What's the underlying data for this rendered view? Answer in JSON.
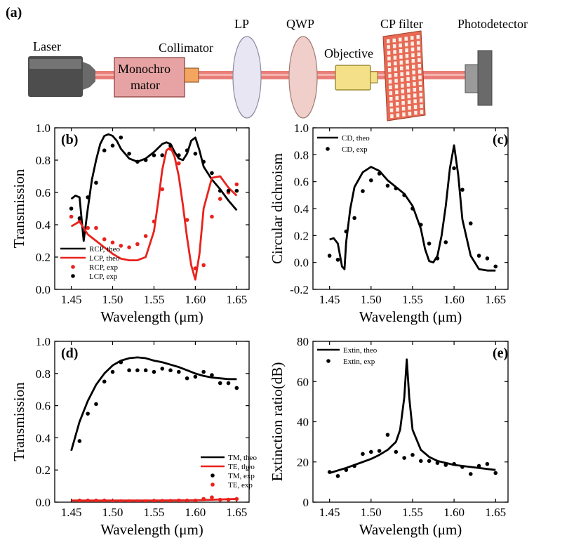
{
  "setup": {
    "panel_label": "(a)",
    "components": {
      "laser": "Laser",
      "monochromator_line1": "Monochro",
      "monochromator_line2": "mator",
      "collimator": "Collimator",
      "lp": "LP",
      "qwp": "QWP",
      "objective": "Objective",
      "cp_filter": "CP filter",
      "photodetector": "Photodetector"
    },
    "colors": {
      "beam": "#e8706a",
      "laser_body": "#5a5a5a",
      "monochromator": "#e7a3a3",
      "collimator": "#f4a660",
      "lp_disc": "#e8e6f2",
      "qwp_disc": "#f0cfca",
      "objective": "#f5e08a",
      "filter": "#e86a55",
      "detector": "#7a7a7a"
    }
  },
  "chart_data": [
    {
      "id": "b",
      "panel_label": "(b)",
      "type": "line",
      "ylabel": "Transmission",
      "xlabel": "Wavelength (μm)",
      "xlim": [
        1.43,
        1.665
      ],
      "ylim": [
        0.0,
        1.0
      ],
      "xticks": [
        1.45,
        1.5,
        1.55,
        1.6,
        1.65
      ],
      "yticks": [
        0.0,
        0.2,
        0.4,
        0.6,
        0.8,
        1.0
      ],
      "legend_position": "bottom-left",
      "series": [
        {
          "name": "RCP, theo",
          "kind": "line",
          "color": "#000000",
          "x": [
            1.45,
            1.455,
            1.46,
            1.465,
            1.47,
            1.475,
            1.48,
            1.485,
            1.49,
            1.495,
            1.5,
            1.505,
            1.51,
            1.52,
            1.53,
            1.54,
            1.55,
            1.56,
            1.565,
            1.57,
            1.575,
            1.58,
            1.585,
            1.59,
            1.595,
            1.6,
            1.605,
            1.61,
            1.62,
            1.63,
            1.64,
            1.65
          ],
          "y": [
            0.56,
            0.58,
            0.57,
            0.3,
            0.5,
            0.68,
            0.8,
            0.9,
            0.95,
            0.96,
            0.95,
            0.92,
            0.87,
            0.81,
            0.79,
            0.81,
            0.85,
            0.9,
            0.91,
            0.9,
            0.85,
            0.81,
            0.8,
            0.84,
            0.92,
            0.94,
            0.86,
            0.76,
            0.68,
            0.62,
            0.55,
            0.49
          ]
        },
        {
          "name": "LCP, theo",
          "kind": "line",
          "color": "#e8221c",
          "x": [
            1.45,
            1.46,
            1.465,
            1.47,
            1.48,
            1.49,
            1.5,
            1.51,
            1.52,
            1.53,
            1.54,
            1.55,
            1.555,
            1.56,
            1.565,
            1.57,
            1.575,
            1.58,
            1.585,
            1.59,
            1.595,
            1.6,
            1.605,
            1.61,
            1.62,
            1.63,
            1.64,
            1.65
          ],
          "y": [
            0.39,
            0.42,
            0.38,
            0.34,
            0.3,
            0.26,
            0.22,
            0.19,
            0.18,
            0.18,
            0.2,
            0.36,
            0.54,
            0.74,
            0.86,
            0.88,
            0.82,
            0.7,
            0.52,
            0.32,
            0.15,
            0.06,
            0.22,
            0.5,
            0.69,
            0.7,
            0.63,
            0.58
          ]
        },
        {
          "name": "RCP, exp",
          "kind": "scatter",
          "color": "#e8221c",
          "x": [
            1.45,
            1.46,
            1.47,
            1.48,
            1.49,
            1.5,
            1.51,
            1.52,
            1.53,
            1.54,
            1.55,
            1.56,
            1.57,
            1.58,
            1.59,
            1.6,
            1.61,
            1.62,
            1.63,
            1.64,
            1.65
          ],
          "y": [
            0.45,
            0.42,
            0.38,
            0.38,
            0.31,
            0.29,
            0.27,
            0.26,
            0.28,
            0.33,
            0.42,
            0.62,
            0.87,
            0.78,
            0.43,
            0.13,
            0.15,
            0.45,
            0.56,
            0.6,
            0.65
          ]
        },
        {
          "name": "LCP, exp",
          "kind": "scatter",
          "color": "#000000",
          "x": [
            1.45,
            1.46,
            1.47,
            1.48,
            1.49,
            1.5,
            1.51,
            1.52,
            1.53,
            1.54,
            1.55,
            1.56,
            1.57,
            1.58,
            1.59,
            1.6,
            1.61,
            1.62,
            1.63,
            1.64,
            1.65
          ],
          "y": [
            0.5,
            0.44,
            0.57,
            0.66,
            0.86,
            0.89,
            0.94,
            0.84,
            0.79,
            0.8,
            0.83,
            0.83,
            0.89,
            0.83,
            0.86,
            0.84,
            0.79,
            0.72,
            0.61,
            0.61,
            0.61
          ]
        }
      ]
    },
    {
      "id": "c",
      "panel_label": "(c)",
      "type": "line",
      "ylabel": "Circular dichroism",
      "xlabel": "Wavelength (μm)",
      "xlim": [
        1.43,
        1.665
      ],
      "ylim": [
        -0.2,
        1.0
      ],
      "xticks": [
        1.45,
        1.5,
        1.55,
        1.6,
        1.65
      ],
      "yticks": [
        -0.2,
        0.0,
        0.2,
        0.4,
        0.6,
        0.8,
        1.0
      ],
      "legend_position": "top-left",
      "series": [
        {
          "name": "CD, theo",
          "kind": "line",
          "color": "#000000",
          "x": [
            1.45,
            1.455,
            1.46,
            1.465,
            1.468,
            1.47,
            1.475,
            1.48,
            1.49,
            1.5,
            1.51,
            1.52,
            1.53,
            1.54,
            1.55,
            1.56,
            1.565,
            1.57,
            1.575,
            1.58,
            1.585,
            1.59,
            1.595,
            1.6,
            1.605,
            1.61,
            1.62,
            1.63,
            1.64,
            1.65
          ],
          "y": [
            0.17,
            0.18,
            0.14,
            -0.03,
            -0.05,
            0.15,
            0.4,
            0.56,
            0.67,
            0.71,
            0.68,
            0.61,
            0.56,
            0.51,
            0.42,
            0.25,
            0.1,
            0.01,
            0.0,
            0.05,
            0.2,
            0.42,
            0.7,
            0.87,
            0.65,
            0.32,
            0.05,
            -0.05,
            -0.06,
            -0.06
          ]
        },
        {
          "name": "CD, exp",
          "kind": "scatter",
          "color": "#000000",
          "x": [
            1.45,
            1.46,
            1.47,
            1.48,
            1.49,
            1.5,
            1.51,
            1.52,
            1.53,
            1.54,
            1.55,
            1.56,
            1.57,
            1.58,
            1.59,
            1.6,
            1.61,
            1.62,
            1.63,
            1.64,
            1.65
          ],
          "y": [
            0.05,
            0.02,
            0.23,
            0.33,
            0.53,
            0.61,
            0.66,
            0.57,
            0.55,
            0.5,
            0.4,
            0.28,
            0.14,
            0.03,
            0.15,
            0.7,
            0.54,
            0.29,
            0.05,
            0.03,
            -0.03
          ]
        }
      ]
    },
    {
      "id": "d",
      "panel_label": "(d)",
      "type": "line",
      "ylabel": "Transmission",
      "xlabel": "Wavelength (μm)",
      "xlim": [
        1.43,
        1.665
      ],
      "ylim": [
        0.0,
        1.0
      ],
      "xticks": [
        1.45,
        1.5,
        1.55,
        1.6,
        1.65
      ],
      "yticks": [
        0.0,
        0.2,
        0.4,
        0.6,
        0.8,
        1.0
      ],
      "legend_position": "bottom-right",
      "series": [
        {
          "name": "TM, theo",
          "kind": "line",
          "color": "#000000",
          "x": [
            1.45,
            1.46,
            1.47,
            1.48,
            1.49,
            1.5,
            1.51,
            1.52,
            1.53,
            1.54,
            1.55,
            1.56,
            1.57,
            1.58,
            1.59,
            1.6,
            1.61,
            1.62,
            1.63,
            1.64,
            1.65
          ],
          "y": [
            0.32,
            0.5,
            0.63,
            0.73,
            0.8,
            0.85,
            0.88,
            0.895,
            0.9,
            0.895,
            0.88,
            0.87,
            0.855,
            0.84,
            0.82,
            0.8,
            0.785,
            0.775,
            0.77,
            0.765,
            0.765
          ]
        },
        {
          "name": "TE, theo",
          "kind": "line",
          "color": "#e8221c",
          "x": [
            1.45,
            1.5,
            1.55,
            1.6,
            1.65
          ],
          "y": [
            0.01,
            0.01,
            0.01,
            0.012,
            0.02
          ]
        },
        {
          "name": "TM, exp",
          "kind": "scatter",
          "color": "#000000",
          "x": [
            1.46,
            1.47,
            1.48,
            1.49,
            1.5,
            1.51,
            1.52,
            1.53,
            1.54,
            1.55,
            1.56,
            1.57,
            1.58,
            1.59,
            1.6,
            1.61,
            1.62,
            1.63,
            1.64,
            1.65
          ],
          "y": [
            0.38,
            0.55,
            0.61,
            0.75,
            0.81,
            0.87,
            0.82,
            0.82,
            0.82,
            0.81,
            0.83,
            0.82,
            0.81,
            0.77,
            0.78,
            0.81,
            0.79,
            0.74,
            0.74,
            0.71
          ]
        },
        {
          "name": "TE, exp",
          "kind": "scatter",
          "color": "#e8221c",
          "x": [
            1.46,
            1.47,
            1.48,
            1.49,
            1.5,
            1.51,
            1.52,
            1.53,
            1.54,
            1.55,
            1.56,
            1.57,
            1.58,
            1.59,
            1.6,
            1.61,
            1.62,
            1.63,
            1.64,
            1.65
          ],
          "y": [
            0.01,
            0.01,
            0.01,
            0.01,
            0.005,
            0.005,
            0.005,
            0.005,
            0.005,
            0.008,
            0.008,
            0.008,
            0.01,
            0.01,
            0.01,
            0.02,
            0.03,
            0.015,
            0.015,
            0.02
          ]
        }
      ]
    },
    {
      "id": "e",
      "panel_label": "(e)",
      "type": "line",
      "ylabel": "Extinction ratio(dB)",
      "xlabel": "Wavelength (μm)",
      "xlim": [
        1.43,
        1.665
      ],
      "ylim": [
        0,
        80
      ],
      "xticks": [
        1.45,
        1.5,
        1.55,
        1.6,
        1.65
      ],
      "yticks": [
        0,
        20,
        40,
        60,
        80
      ],
      "legend_position": "top-left",
      "series": [
        {
          "name": "Extin, theo",
          "kind": "line",
          "color": "#000000",
          "x": [
            1.45,
            1.47,
            1.49,
            1.5,
            1.51,
            1.52,
            1.53,
            1.535,
            1.54,
            1.543,
            1.546,
            1.55,
            1.56,
            1.57,
            1.58,
            1.6,
            1.62,
            1.65
          ],
          "y": [
            14.5,
            17,
            20,
            21.5,
            23.5,
            26,
            30,
            36,
            52,
            71,
            52,
            36,
            26,
            22.5,
            20.5,
            18.5,
            17.5,
            16
          ]
        },
        {
          "name": "Extin, exp",
          "kind": "scatter",
          "color": "#000000",
          "x": [
            1.45,
            1.46,
            1.47,
            1.48,
            1.49,
            1.5,
            1.51,
            1.52,
            1.53,
            1.54,
            1.55,
            1.56,
            1.57,
            1.58,
            1.59,
            1.6,
            1.61,
            1.62,
            1.63,
            1.64,
            1.65
          ],
          "y": [
            15,
            13,
            16,
            18,
            24,
            25,
            25.5,
            33.5,
            25,
            22,
            23.5,
            20.5,
            20.5,
            19.5,
            18.5,
            19,
            17.5,
            14,
            18,
            19,
            14.5
          ]
        }
      ]
    }
  ]
}
